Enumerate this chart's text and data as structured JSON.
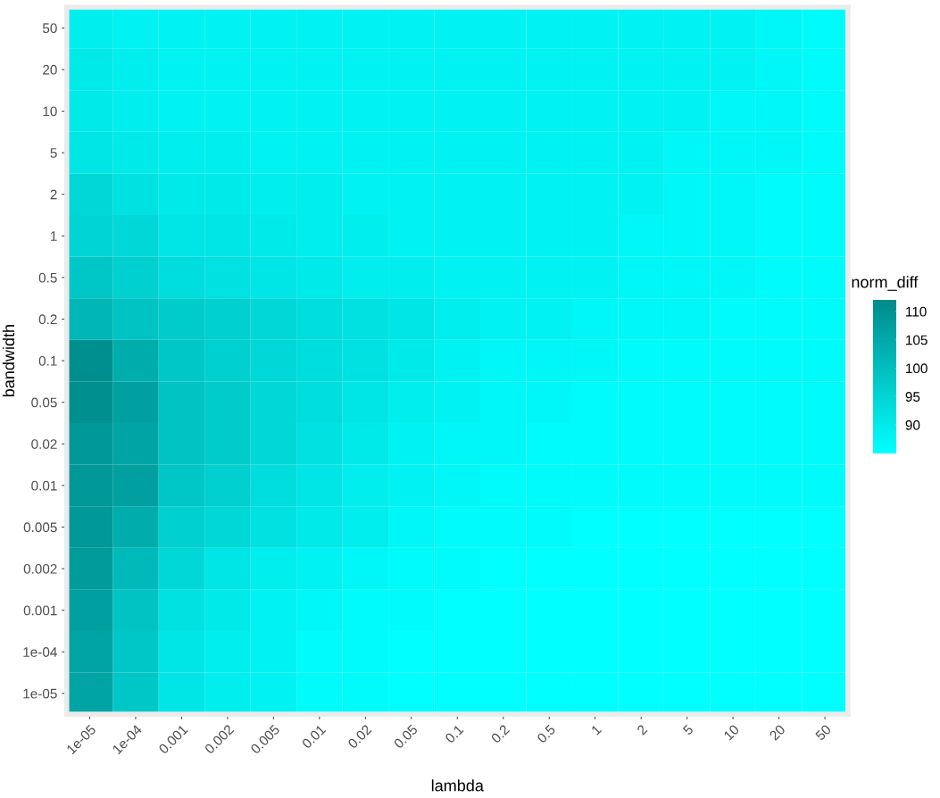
{
  "chart_data": {
    "type": "heatmap",
    "xlabel": "lambda",
    "ylabel": "bandwidth",
    "clabel": "norm_diff",
    "categories": [
      "1e-05",
      "1e-04",
      "0.001",
      "0.002",
      "0.005",
      "0.01",
      "0.02",
      "0.05",
      "0.1",
      "0.2",
      "0.5",
      "1",
      "2",
      "5",
      "10",
      "20",
      "50"
    ],
    "y_categories": [
      "50",
      "20",
      "10",
      "5",
      "2",
      "1",
      "0.5",
      "0.2",
      "0.1",
      "0.05",
      "0.02",
      "0.01",
      "0.005",
      "0.002",
      "0.001",
      "1e-04",
      "1e-05"
    ],
    "cells": [
      [
        89,
        88,
        88,
        88,
        88,
        88,
        88,
        88,
        88,
        88,
        88,
        88,
        88,
        88,
        88,
        87,
        86
      ],
      [
        90,
        89,
        88,
        88,
        88,
        88,
        88,
        88,
        88,
        88,
        88,
        88,
        88,
        88,
        88,
        87,
        86
      ],
      [
        90,
        89,
        88,
        88,
        88,
        88,
        88,
        88,
        88,
        88,
        88,
        88,
        88,
        88,
        87,
        87,
        86
      ],
      [
        91,
        90,
        89,
        89,
        88,
        88,
        88,
        88,
        88,
        88,
        88,
        88,
        88,
        87,
        87,
        87,
        86
      ],
      [
        94,
        92,
        90,
        90,
        89,
        89,
        88,
        88,
        88,
        88,
        88,
        88,
        88,
        87,
        87,
        86,
        86
      ],
      [
        95,
        94,
        91,
        91,
        90,
        89,
        89,
        88,
        88,
        88,
        88,
        88,
        87,
        87,
        87,
        86,
        86
      ],
      [
        98,
        96,
        93,
        92,
        91,
        90,
        89,
        89,
        88,
        88,
        88,
        88,
        87,
        87,
        87,
        86,
        86
      ],
      [
        102,
        99,
        97,
        96,
        94,
        93,
        92,
        91,
        89,
        88,
        88,
        87,
        87,
        87,
        86,
        86,
        86
      ],
      [
        111,
        104,
        98,
        96,
        94,
        93,
        92,
        90,
        88,
        87,
        87,
        87,
        86,
        86,
        86,
        86,
        86
      ],
      [
        111,
        107,
        99,
        97,
        94,
        93,
        91,
        89,
        88,
        87,
        87,
        86,
        86,
        86,
        86,
        86,
        86
      ],
      [
        109,
        106,
        99,
        97,
        94,
        92,
        90,
        88,
        87,
        87,
        86,
        86,
        86,
        86,
        86,
        86,
        86
      ],
      [
        109,
        107,
        98,
        96,
        93,
        91,
        89,
        88,
        87,
        86,
        86,
        86,
        86,
        86,
        86,
        86,
        86
      ],
      [
        109,
        104,
        96,
        94,
        92,
        90,
        89,
        87,
        86,
        86,
        86,
        85,
        85,
        85,
        85,
        85,
        85
      ],
      [
        108,
        101,
        94,
        91,
        89,
        88,
        87,
        86,
        86,
        85,
        85,
        85,
        85,
        85,
        85,
        85,
        85
      ],
      [
        107,
        99,
        92,
        90,
        88,
        87,
        86,
        86,
        85,
        85,
        85,
        85,
        85,
        85,
        85,
        85,
        85
      ],
      [
        106,
        98,
        91,
        89,
        88,
        86,
        86,
        85,
        85,
        85,
        85,
        85,
        85,
        85,
        85,
        85,
        85
      ],
      [
        106,
        98,
        91,
        89,
        88,
        86,
        86,
        85,
        85,
        85,
        85,
        85,
        85,
        85,
        85,
        85,
        85
      ]
    ],
    "clim": [
      85,
      112
    ],
    "cticks": [
      90,
      95,
      100,
      105,
      110
    ]
  }
}
